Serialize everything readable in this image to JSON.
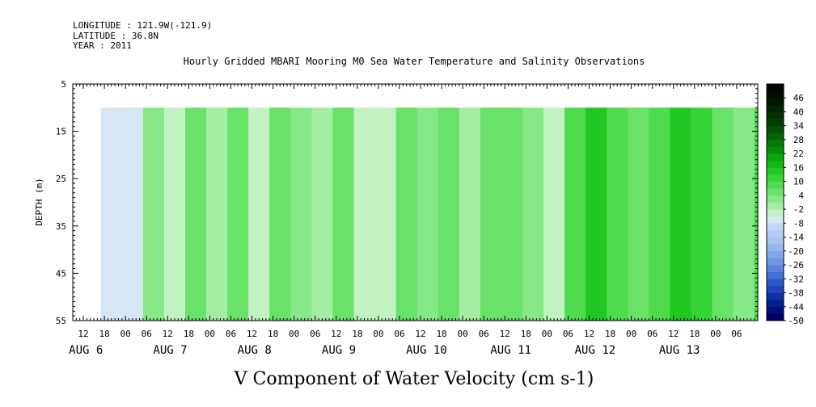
{
  "meta": {
    "longitude": "LONGITUDE : 121.9W(-121.9)",
    "latitude": "LATITUDE : 36.8N",
    "year": "YEAR : 2011"
  },
  "title": "Hourly Gridded MBARI Mooring M0 Sea Water Temperature and Salinity Observations",
  "bottom_title": "V Component of Water Velocity (cm s-1)",
  "chart_data": {
    "type": "heatmap",
    "title": "Hourly Gridded MBARI Mooring M0 Sea Water Temperature and Salinity Observations",
    "variable": "V Component of Water Velocity (cm s-1)",
    "ylabel": "DEPTH (m)",
    "ylim": [
      55,
      5
    ],
    "y_ticks": [
      "5",
      "15",
      "25",
      "35",
      "45",
      "55"
    ],
    "data_depth_range": [
      10,
      55
    ],
    "x_start": "2011-08-05 09:00",
    "x_end": "2011-08-13 12:00",
    "data_time_range": [
      "2011-08-05 17:00",
      "2011-08-13 11:00"
    ],
    "x_hour_ticks": [
      "12",
      "18",
      "00",
      "06",
      "12",
      "18",
      "00",
      "06",
      "12",
      "18",
      "00",
      "06",
      "12",
      "18",
      "00",
      "06",
      "12",
      "18",
      "00",
      "06",
      "12",
      "18",
      "00",
      "06",
      "12",
      "18",
      "00",
      "06",
      "12",
      "18",
      "00",
      "06"
    ],
    "x_day_labels": [
      "AUG 6",
      "AUG 7",
      "AUG 8",
      "AUG 9",
      "AUG 10",
      "AUG 11",
      "AUG 12",
      "AUG 13"
    ],
    "colorbar": {
      "labels": [
        "46",
        "40",
        "34",
        "28",
        "22",
        "16",
        "10",
        "4",
        "-2",
        "-8",
        "-14",
        "-20",
        "-26",
        "-32",
        "-38",
        "-44",
        "-50"
      ],
      "min": -50,
      "max": 52,
      "step": 3,
      "colors": [
        "#000066",
        "#00107a",
        "#00208e",
        "#1030a4",
        "#1e44b8",
        "#2e58c8",
        "#4470d4",
        "#5a84de",
        "#6e96e4",
        "#82a6ea",
        "#96b6ee",
        "#a8c2f2",
        "#b6ccf4",
        "#c4d6f6",
        "#d6e6f4",
        "#c2f2c2",
        "#a4eea4",
        "#86e886",
        "#6ae26a",
        "#4edc4e",
        "#36d436",
        "#22c822",
        "#14b814",
        "#0ca40c",
        "#088e08",
        "#067806",
        "#046404",
        "#035203",
        "#024002",
        "#013001",
        "#002400",
        "#001800",
        "#001000",
        "#000800"
      ]
    },
    "columns": [
      {
        "time": "2011-08-05 17:00",
        "value": -8
      },
      {
        "time": "2011-08-05 23:00",
        "value": -6
      },
      {
        "time": "2011-08-06 05:00",
        "value": 2
      },
      {
        "time": "2011-08-06 11:00",
        "value": -4
      },
      {
        "time": "2011-08-06 17:00",
        "value": 4
      },
      {
        "time": "2011-08-06 23:00",
        "value": -2
      },
      {
        "time": "2011-08-07 05:00",
        "value": 5
      },
      {
        "time": "2011-08-07 11:00",
        "value": -4
      },
      {
        "time": "2011-08-07 17:00",
        "value": 6
      },
      {
        "time": "2011-08-07 23:00",
        "value": 2
      },
      {
        "time": "2011-08-08 05:00",
        "value": -2
      },
      {
        "time": "2011-08-08 11:00",
        "value": 4
      },
      {
        "time": "2011-08-08 17:00",
        "value": -5
      },
      {
        "time": "2011-08-08 23:00",
        "value": -3
      },
      {
        "time": "2011-08-09 05:00",
        "value": 5
      },
      {
        "time": "2011-08-09 11:00",
        "value": 2
      },
      {
        "time": "2011-08-09 17:00",
        "value": 6
      },
      {
        "time": "2011-08-09 23:00",
        "value": -2
      },
      {
        "time": "2011-08-10 05:00",
        "value": 4
      },
      {
        "time": "2011-08-10 11:00",
        "value": 6
      },
      {
        "time": "2011-08-10 17:00",
        "value": 2
      },
      {
        "time": "2011-08-10 23:00",
        "value": -5
      },
      {
        "time": "2011-08-11 05:00",
        "value": 8
      },
      {
        "time": "2011-08-11 11:00",
        "value": 14
      },
      {
        "time": "2011-08-11 17:00",
        "value": 7
      },
      {
        "time": "2011-08-11 23:00",
        "value": 4
      },
      {
        "time": "2011-08-12 05:00",
        "value": 9
      },
      {
        "time": "2011-08-12 11:00",
        "value": 14
      },
      {
        "time": "2011-08-12 17:00",
        "value": 11
      },
      {
        "time": "2011-08-12 23:00",
        "value": 4
      },
      {
        "time": "2011-08-13 05:00",
        "value": 2
      },
      {
        "time": "2011-08-13 11:00",
        "value": 8
      }
    ]
  }
}
